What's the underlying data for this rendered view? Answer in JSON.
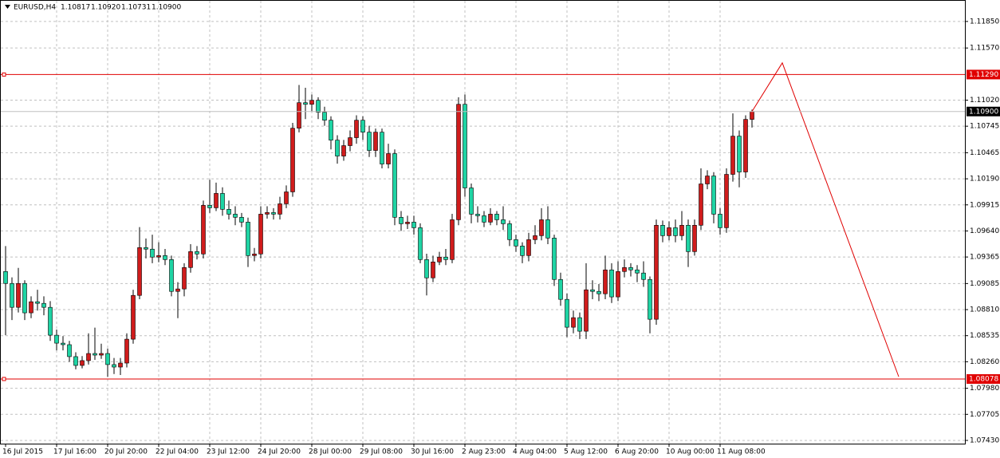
{
  "chart_data": {
    "type": "candlestick",
    "symbol": "EURUSD,H4",
    "ohlc_labels": [
      "1.10817",
      "1.10920",
      "1.10731",
      "1.10900"
    ],
    "up_color": "#d01c1c",
    "down_color": "#1ed4a4",
    "wick_color": "#000000",
    "grid": true,
    "ylim": [
      1.07396,
      1.12068
    ],
    "yticks": [
      {
        "value": 1.1185,
        "label": "1.11850"
      },
      {
        "value": 1.1157,
        "label": "1.11570"
      },
      {
        "value": 1.1102,
        "label": "1.11020"
      },
      {
        "value": 1.10745,
        "label": "1.10745"
      },
      {
        "value": 1.10465,
        "label": "1.10465"
      },
      {
        "value": 1.1019,
        "label": "1.10190"
      },
      {
        "value": 1.09915,
        "label": "1.09915"
      },
      {
        "value": 1.0964,
        "label": "1.09640"
      },
      {
        "value": 1.09365,
        "label": "1.09365"
      },
      {
        "value": 1.09085,
        "label": "1.09085"
      },
      {
        "value": 1.0881,
        "label": "1.08810"
      },
      {
        "value": 1.08535,
        "label": "1.08535"
      },
      {
        "value": 1.0826,
        "label": "1.08260"
      },
      {
        "value": 1.0798,
        "label": "1.07980"
      },
      {
        "value": 1.07705,
        "label": "1.07705"
      },
      {
        "value": 1.0743,
        "label": "1.07430"
      }
    ],
    "levels": [
      {
        "value": 1.1129,
        "label": "1.11290"
      },
      {
        "value": 1.08078,
        "label": "1.08078"
      }
    ],
    "level_color": "#e00000",
    "bid": {
      "value": 1.109,
      "label": "1.10900"
    },
    "projection": {
      "x": [
        117,
        121.75,
        140
      ],
      "y": [
        1.109,
        1.11413,
        1.08102
      ],
      "color": "#e00000"
    },
    "categories": [
      "16 Jul 2015",
      null,
      null,
      null,
      null,
      null,
      null,
      null,
      "17 Jul 16:00",
      null,
      null,
      null,
      null,
      null,
      null,
      null,
      "20 Jul 20:00",
      null,
      null,
      null,
      null,
      null,
      null,
      null,
      "22 Jul 04:00",
      null,
      null,
      null,
      null,
      null,
      null,
      null,
      "23 Jul 12:00",
      null,
      null,
      null,
      null,
      null,
      null,
      null,
      "24 Jul 20:00",
      null,
      null,
      null,
      null,
      null,
      null,
      null,
      "28 Jul 00:00",
      null,
      null,
      null,
      null,
      null,
      null,
      null,
      "29 Jul 08:00",
      null,
      null,
      null,
      null,
      null,
      null,
      null,
      "30 Jul 16:00",
      null,
      null,
      null,
      null,
      null,
      null,
      null,
      "2 Aug 23:00",
      null,
      null,
      null,
      null,
      null,
      null,
      null,
      "4 Aug 04:00",
      null,
      null,
      null,
      null,
      null,
      null,
      null,
      "5 Aug 12:00",
      null,
      null,
      null,
      null,
      null,
      null,
      null,
      "6 Aug 20:00",
      null,
      null,
      null,
      null,
      null,
      null,
      null,
      "10 Aug 00:00",
      null,
      null,
      null,
      null,
      null,
      null,
      null,
      "11 Aug 08:00",
      null,
      null,
      null,
      null,
      null
    ],
    "open": [
      1.09212,
      1.09086,
      1.08834,
      1.09086,
      1.08776,
      1.08893,
      1.08876,
      1.08834,
      1.0854,
      1.08456,
      1.0844,
      1.08314,
      1.08221,
      1.08272,
      1.08347,
      1.0833,
      1.08347,
      1.0823,
      1.08204,
      1.08246,
      1.08498,
      1.0896,
      1.09464,
      1.09448,
      1.09364,
      1.0938,
      1.09338,
      1.09002,
      1.09028,
      1.09254,
      1.09422,
      1.09397,
      1.0991,
      1.09884,
      1.10036,
      1.09868,
      1.09817,
      1.09784,
      1.09733,
      1.0938,
      1.09397,
      1.09817,
      1.09834,
      1.09817,
      1.09926,
      1.10052,
      1.10724,
      1.10993,
      1.10976,
      1.11018,
      1.10892,
      1.10808,
      1.10598,
      1.1043,
      1.1054,
      1.10624,
      1.10808,
      1.10682,
      1.10489,
      1.10682,
      1.10346,
      1.10456,
      1.09784,
      1.09716,
      1.09733,
      1.09674,
      1.09338,
      1.09145,
      1.09313,
      1.09364,
      1.09338,
      1.09758,
      1.10976,
      1.10094,
      1.09817,
      1.098,
      1.09733,
      1.09817,
      1.09758,
      1.09716,
      1.09548,
      1.09481,
      1.0938,
      1.09548,
      1.0959,
      1.09758,
      1.09565,
      1.09128,
      1.08918,
      1.08624,
      1.08725,
      1.08582,
      1.09019,
      1.09002,
      1.08977,
      1.09229,
      1.08944,
      1.09212,
      1.09254,
      1.09229,
      1.09196,
      1.09128,
      1.08708,
      1.097,
      1.0959,
      1.09674,
      1.0959,
      1.097,
      1.09422,
      1.097,
      1.10136,
      1.1022,
      1.09817,
      1.09674,
      1.10237,
      1.1064,
      1.10262,
      1.10817
    ],
    "high": [
      1.0948,
      1.0915,
      1.0925,
      1.0912,
      1.0895,
      1.0902,
      1.0895,
      1.089,
      1.086,
      1.0853,
      1.0848,
      1.0836,
      1.0832,
      1.0856,
      1.0862,
      1.0845,
      1.084,
      1.083,
      1.083,
      1.0856,
      1.0902,
      1.0968,
      1.0956,
      1.096,
      1.0952,
      1.0945,
      1.0938,
      1.091,
      1.093,
      1.095,
      1.0948,
      1.0996,
      1.1018,
      1.1015,
      1.101,
      1.0996,
      1.099,
      1.0983,
      1.0978,
      1.0946,
      1.099,
      1.099,
      1.0988,
      1.1,
      1.1012,
      1.1078,
      1.1118,
      1.1115,
      1.1108,
      1.1105,
      1.1095,
      1.1085,
      1.1065,
      1.106,
      1.107,
      1.1086,
      1.1085,
      1.1075,
      1.1072,
      1.1072,
      1.1056,
      1.105,
      1.0985,
      1.098,
      1.098,
      1.0972,
      1.094,
      1.0938,
      1.0942,
      1.0945,
      1.0982,
      1.1105,
      1.1108,
      1.1014,
      1.099,
      1.0985,
      1.0988,
      1.0985,
      1.099,
      1.0975,
      1.096,
      1.0952,
      1.0962,
      1.097,
      1.0988,
      1.099,
      1.096,
      1.092,
      1.0898,
      1.088,
      1.0878,
      1.093,
      1.0912,
      1.0908,
      1.0938,
      1.093,
      1.0932,
      1.0934,
      1.093,
      1.0928,
      1.0932,
      1.0916,
      1.0976,
      1.0975,
      1.0974,
      1.0976,
      1.0985,
      1.0976,
      1.0976,
      1.103,
      1.1028,
      1.1026,
      1.0988,
      1.103,
      1.1088,
      1.107,
      1.1086,
      1.1092
    ],
    "low": [
      1.0854,
      1.087,
      1.0878,
      1.087,
      1.0872,
      1.088,
      1.0875,
      1.0848,
      1.0838,
      1.0838,
      1.0826,
      1.0818,
      1.0819,
      1.0823,
      1.0828,
      1.0829,
      1.081,
      1.0813,
      1.0812,
      1.082,
      1.0845,
      1.0892,
      1.0935,
      1.093,
      1.0931,
      1.0928,
      1.0895,
      1.0872,
      1.0895,
      1.092,
      1.0934,
      1.0935,
      1.0983,
      1.0985,
      1.098,
      1.0976,
      1.097,
      1.0968,
      1.0926,
      1.0932,
      1.0935,
      1.0977,
      1.0976,
      1.0976,
      1.0988,
      1.1,
      1.1068,
      1.1082,
      1.109,
      1.1082,
      1.1075,
      1.105,
      1.1035,
      1.1038,
      1.1048,
      1.1056,
      1.106,
      1.1042,
      1.1042,
      1.103,
      1.103,
      1.097,
      1.0964,
      1.0966,
      1.096,
      1.093,
      1.0896,
      1.091,
      1.0928,
      1.0928,
      1.093,
      1.097,
      1.1,
      1.0972,
      1.0973,
      1.0968,
      1.097,
      1.097,
      1.0965,
      1.0948,
      1.0942,
      1.093,
      1.0932,
      1.095,
      1.0954,
      1.095,
      1.0906,
      1.0885,
      1.0852,
      1.0856,
      1.085,
      1.085,
      1.0892,
      1.089,
      1.0892,
      1.0888,
      1.089,
      1.0915,
      1.0916,
      1.091,
      1.0905,
      1.0856,
      1.0865,
      1.0952,
      1.0954,
      1.0952,
      1.0954,
      1.0926,
      1.0938,
      1.0965,
      1.1008,
      1.0972,
      1.096,
      1.0962,
      1.1016,
      1.101,
      1.102,
      1.10731
    ],
    "close": [
      1.09086,
      1.08834,
      1.09086,
      1.08776,
      1.08893,
      1.08876,
      1.08834,
      1.0854,
      1.08456,
      1.0844,
      1.08314,
      1.08221,
      1.08272,
      1.08347,
      1.0833,
      1.08347,
      1.0823,
      1.08204,
      1.08246,
      1.08498,
      1.0896,
      1.09464,
      1.09448,
      1.09364,
      1.0938,
      1.09338,
      1.09002,
      1.09028,
      1.09254,
      1.09422,
      1.09397,
      1.0991,
      1.09884,
      1.10036,
      1.09868,
      1.09817,
      1.09784,
      1.09733,
      1.0938,
      1.09397,
      1.09817,
      1.09834,
      1.09817,
      1.09926,
      1.10052,
      1.10724,
      1.10993,
      1.10976,
      1.11018,
      1.10892,
      1.10808,
      1.10598,
      1.1043,
      1.1054,
      1.10624,
      1.10808,
      1.10682,
      1.10489,
      1.10682,
      1.10346,
      1.10456,
      1.09784,
      1.09716,
      1.09733,
      1.09674,
      1.09338,
      1.09145,
      1.09313,
      1.09364,
      1.09338,
      1.09758,
      1.10976,
      1.10094,
      1.09817,
      1.098,
      1.09733,
      1.09817,
      1.09758,
      1.09716,
      1.09548,
      1.09481,
      1.0938,
      1.09548,
      1.0959,
      1.09758,
      1.09565,
      1.09128,
      1.08918,
      1.08624,
      1.08725,
      1.08582,
      1.09019,
      1.09002,
      1.08977,
      1.09229,
      1.08944,
      1.09212,
      1.09254,
      1.09229,
      1.09196,
      1.09128,
      1.08708,
      1.097,
      1.0959,
      1.09674,
      1.0959,
      1.097,
      1.09422,
      1.097,
      1.10136,
      1.1022,
      1.09817,
      1.09674,
      1.10237,
      1.1064,
      1.10262,
      1.10817,
      1.109
    ]
  }
}
